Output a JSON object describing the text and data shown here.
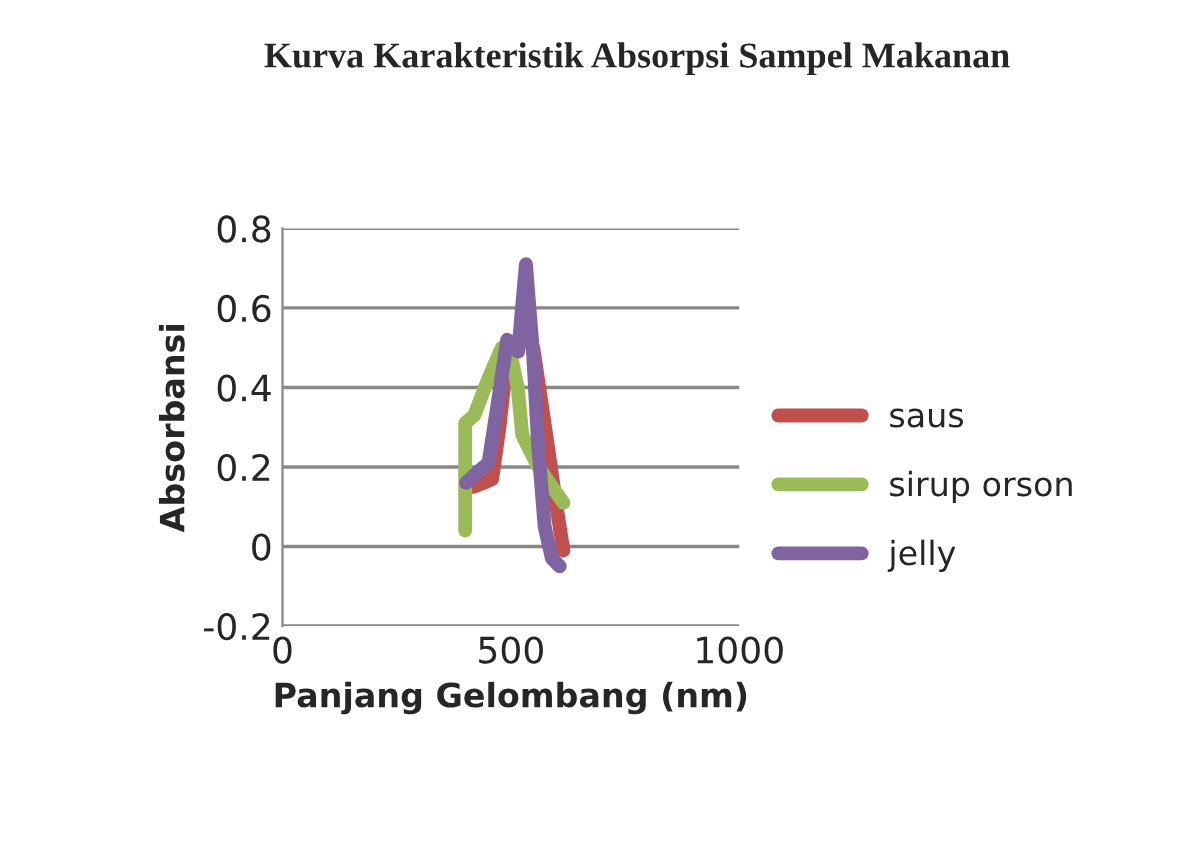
{
  "chart_data": {
    "type": "line",
    "title": "Kurva Karakteristik Absorpsi Sampel Makanan",
    "xlabel": "Panjang Gelombang (nm)",
    "ylabel": "Absorbansi",
    "series": [
      {
        "name": "saus",
        "color": "#c0504d",
        "x": [
          418,
          440,
          459,
          475,
          492,
          510,
          530,
          549,
          575,
          600,
          615
        ],
        "values": [
          0.15,
          0.16,
          0.17,
          0.3,
          0.48,
          0.5,
          0.55,
          0.5,
          0.3,
          0.1,
          -0.01
        ]
      },
      {
        "name": "sirup orson",
        "color": "#9bbb59",
        "x": [
          400,
          400,
          420,
          450,
          480,
          500,
          515,
          525,
          560,
          615
        ],
        "values": [
          0.04,
          0.31,
          0.33,
          0.42,
          0.5,
          0.48,
          0.4,
          0.28,
          0.2,
          0.11
        ]
      },
      {
        "name": "jelly",
        "color": "#8064a2",
        "x": [
          402,
          430,
          451,
          470,
          492,
          516,
          533,
          549,
          560,
          574,
          590,
          607
        ],
        "values": [
          0.16,
          0.19,
          0.21,
          0.35,
          0.52,
          0.49,
          0.71,
          0.48,
          0.25,
          0.05,
          -0.03,
          -0.05
        ]
      }
    ],
    "xlim": [
      0,
      1000
    ],
    "xticks": [
      0,
      500,
      1000
    ],
    "ylim": [
      -0.2,
      0.8
    ],
    "yticks": [
      -0.2,
      0,
      0.2,
      0.4,
      0.6,
      0.8
    ],
    "grid": "y",
    "legend": "right",
    "marker": "none",
    "line_style": "solid"
  }
}
